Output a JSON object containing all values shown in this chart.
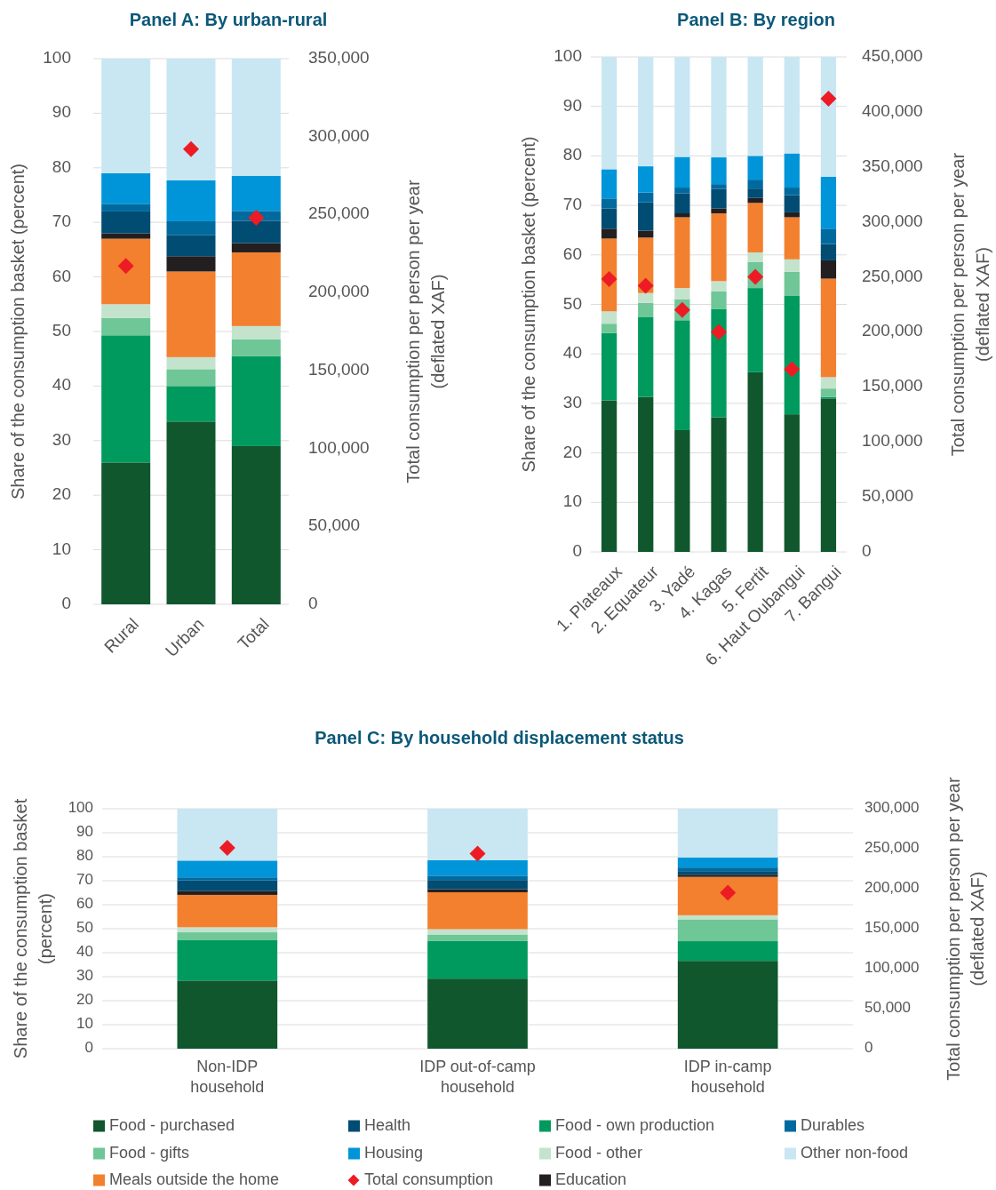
{
  "chart_data": [
    {
      "type": "bar",
      "stacked": true,
      "title": "Panel A: By urban-rural",
      "categories": [
        "Rural",
        "Urban",
        "Total"
      ],
      "ylabel": "Share of the consumption basket (percent)",
      "y2label": "Total consumption per person per year\n(deflated XAF)",
      "ylim": [
        0,
        100
      ],
      "yticks": [
        0,
        10,
        20,
        30,
        40,
        50,
        60,
        70,
        80,
        90,
        100
      ],
      "y2lim": [
        0,
        350000
      ],
      "y2ticks": [
        {
          "value": 0,
          "label": "0"
        },
        {
          "value": 50000,
          "label": "50,000"
        },
        {
          "value": 100000,
          "label": "100,000"
        },
        {
          "value": 150000,
          "label": "150,000"
        },
        {
          "value": 200000,
          "label": "200,000"
        },
        {
          "value": 250000,
          "label": "250,000"
        },
        {
          "value": 300000,
          "label": "300,000"
        },
        {
          "value": 350000,
          "label": "350,000"
        }
      ],
      "grid": "y",
      "legend": false,
      "series": [
        {
          "color": "#10572e",
          "values": [
            26,
            33.5,
            29
          ]
        },
        {
          "color": "#009a5e",
          "values": [
            23.3,
            6.5,
            16.5
          ]
        },
        {
          "color": "#6fc696",
          "values": [
            3.2,
            3.1,
            3.1
          ]
        },
        {
          "color": "#c3e3cd",
          "values": [
            2.5,
            2.2,
            2.4
          ]
        },
        {
          "color": "#f2802f",
          "values": [
            12,
            15.7,
            13.5
          ]
        },
        {
          "color": "#231f20",
          "values": [
            1,
            2.8,
            1.7
          ]
        },
        {
          "color": "#004c73",
          "values": [
            4,
            3.9,
            4.1
          ]
        },
        {
          "color": "#006a9f",
          "values": [
            1.4,
            2.5,
            1.8
          ]
        },
        {
          "color": "#0095d9",
          "values": [
            5.6,
            7.5,
            6.4
          ]
        },
        {
          "color": "#c8e7f3",
          "values": [
            21,
            22.3,
            21.5
          ]
        },
        {
          "type": "scatter",
          "axis": "y2",
          "marker": "diamond",
          "color": "#ed1c24",
          "values": [
            217000,
            292000,
            248000
          ]
        }
      ]
    },
    {
      "type": "bar",
      "stacked": true,
      "title": "Panel B: By region",
      "categories": [
        "1. Plateaux",
        "2. Equateur",
        "3. Yadé",
        "4. Kagas",
        "5. Fertit",
        "6. Haut Oubangui",
        "7. Bangui"
      ],
      "ylabel": "Share of the consumption basket (percent)",
      "y2label": "Total consumption per person per year\n(deflated XAF)",
      "ylim": [
        0,
        100
      ],
      "yticks": [
        0,
        10,
        20,
        30,
        40,
        50,
        60,
        70,
        80,
        90,
        100
      ],
      "y2lim": [
        0,
        450000
      ],
      "y2ticks": [
        {
          "value": 0,
          "label": "0"
        },
        {
          "value": 50000,
          "label": "50,000"
        },
        {
          "value": 100000,
          "label": "100,000"
        },
        {
          "value": 150000,
          "label": "150,000"
        },
        {
          "value": 200000,
          "label": "200,000"
        },
        {
          "value": 250000,
          "label": "250,000"
        },
        {
          "value": 300000,
          "label": "300,000"
        },
        {
          "value": 350000,
          "label": "350,000"
        },
        {
          "value": 400000,
          "label": "400,000"
        },
        {
          "value": 450000,
          "label": "450,000"
        }
      ],
      "grid": "y",
      "legend": false,
      "series": [
        {
          "color": "#10572e",
          "values": [
            30.6,
            31.3,
            24.6,
            27.2,
            36.3,
            27.8,
            31
          ]
        },
        {
          "color": "#009a5e",
          "values": [
            13.6,
            16.1,
            22.2,
            21.9,
            17,
            24,
            0.3
          ]
        },
        {
          "color": "#6fc696",
          "values": [
            1.9,
            2.9,
            4.2,
            3.5,
            5.3,
            4.8,
            1.7
          ]
        },
        {
          "color": "#c3e3cd",
          "values": [
            2.5,
            2,
            2.3,
            2.1,
            1.9,
            2.5,
            2.3
          ]
        },
        {
          "color": "#f2802f",
          "values": [
            14.7,
            11.2,
            14.3,
            13.7,
            10,
            8.5,
            19.9
          ]
        },
        {
          "color": "#231f20",
          "values": [
            2,
            1.4,
            0.8,
            1,
            1,
            1,
            3.7
          ]
        },
        {
          "color": "#004c73",
          "values": [
            4.1,
            5.7,
            4,
            3.9,
            1.9,
            3.5,
            3.3
          ]
        },
        {
          "color": "#006a9f",
          "values": [
            2,
            2,
            1.2,
            1,
            1.8,
            1.5,
            3.1
          ]
        },
        {
          "color": "#0095d9",
          "values": [
            5.9,
            5.3,
            6.2,
            5.4,
            4.8,
            6.9,
            10.5
          ]
        },
        {
          "color": "#c8e7f3",
          "values": [
            22.7,
            22.1,
            20.2,
            20.3,
            20,
            19.5,
            24.2
          ]
        },
        {
          "type": "scatter",
          "axis": "y2",
          "marker": "diamond",
          "color": "#ed1c24",
          "values": [
            248000,
            242000,
            220000,
            200000,
            250000,
            166000,
            412000
          ]
        }
      ]
    },
    {
      "type": "bar",
      "stacked": true,
      "title": "Panel C: By household displacement status",
      "categories": [
        "Non-IDP household",
        "IDP out-of-camp household",
        "IDP in-camp household"
      ],
      "ylabel": "Share of the consumption basket\n(percent)",
      "y2label": "Total consumption per person per year\n(deflated XAF)",
      "ylim": [
        0,
        100
      ],
      "yticks": [
        0,
        10,
        20,
        30,
        40,
        50,
        60,
        70,
        80,
        90,
        100
      ],
      "y2lim": [
        0,
        300000
      ],
      "y2ticks": [
        {
          "value": 0,
          "label": "0"
        },
        {
          "value": 50000,
          "label": "50,000"
        },
        {
          "value": 100000,
          "label": "100,000"
        },
        {
          "value": 150000,
          "label": "150,000"
        },
        {
          "value": 200000,
          "label": "200,000"
        },
        {
          "value": 250000,
          "label": "250,000"
        },
        {
          "value": 300000,
          "label": "300,000"
        }
      ],
      "grid": "y",
      "legend": "bottom",
      "series": [
        {
          "name": "Food - purchased",
          "color": "#10572e",
          "values": [
            28.4,
            29.2,
            36.6
          ]
        },
        {
          "name": "Food - own production",
          "color": "#009a5e",
          "values": [
            16.8,
            15.8,
            8.2
          ]
        },
        {
          "name": "Food - gifts",
          "color": "#6fc696",
          "values": [
            3.3,
            2.6,
            9.1
          ]
        },
        {
          "name": "Food - other",
          "color": "#c3e3cd",
          "values": [
            2.1,
            2.2,
            1.7
          ]
        },
        {
          "name": "Meals outside the home",
          "color": "#f2802f",
          "values": [
            13.5,
            15.4,
            16
          ]
        },
        {
          "name": "Education",
          "color": "#231f20",
          "values": [
            1.7,
            1.3,
            0.9
          ]
        },
        {
          "name": "Health",
          "color": "#004c73",
          "values": [
            4.3,
            3.8,
            1.5
          ]
        },
        {
          "name": "Durables",
          "color": "#006a9f",
          "values": [
            1.3,
            1.8,
            1.5
          ]
        },
        {
          "name": "Housing",
          "color": "#0095d9",
          "values": [
            7,
            6.5,
            4.2
          ]
        },
        {
          "name": "Other non-food",
          "color": "#c8e7f3",
          "values": [
            21.6,
            21.4,
            20.3
          ]
        },
        {
          "name": "Total consumption",
          "type": "scatter",
          "axis": "y2",
          "marker": "diamond",
          "color": "#ed1c24",
          "values": [
            251000,
            244000,
            195000
          ]
        }
      ]
    }
  ]
}
